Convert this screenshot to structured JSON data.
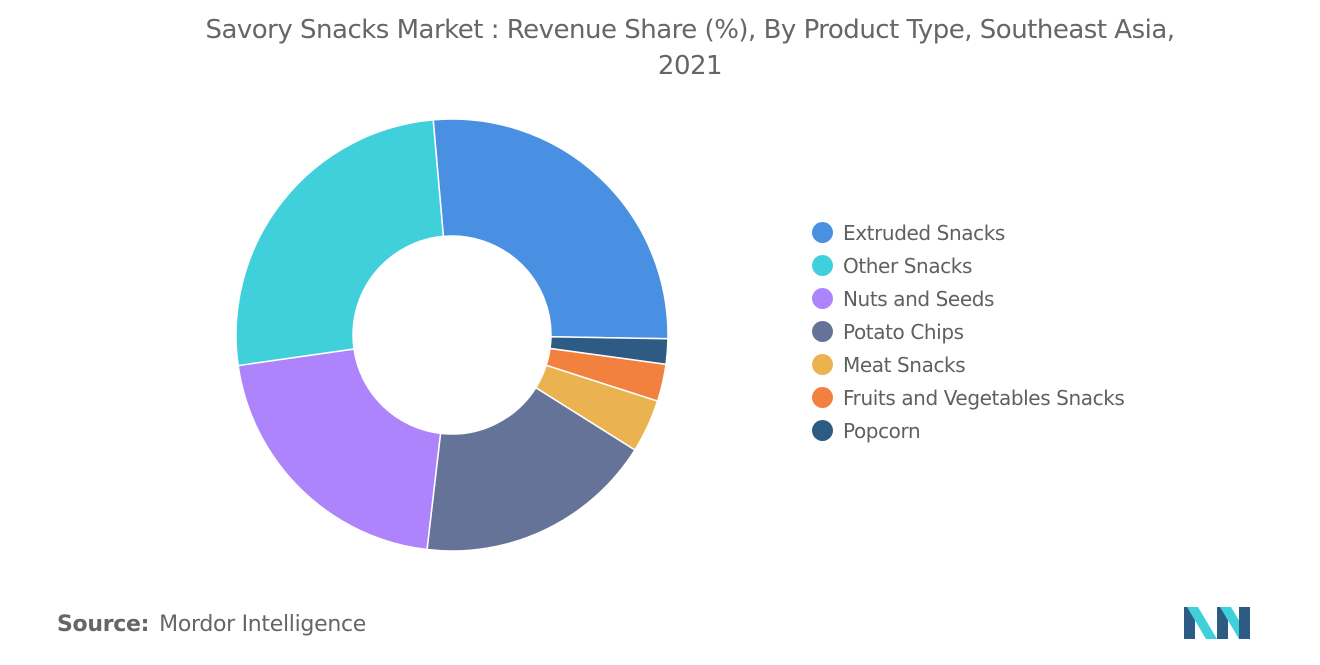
{
  "title_lines": [
    "Savory Snacks Market : Revenue Share (%), By Product Type, Southeast Asia,",
    "2021"
  ],
  "source": {
    "label": "Source:",
    "value": "Mordor Intelligence"
  },
  "chart_data": {
    "type": "pie",
    "title": "Savory Snacks Market : Revenue Share (%), By Product Type, Southeast Asia, 2021",
    "donut": true,
    "legend_position": "right",
    "categories": [
      "Extruded Snacks",
      "Other Snacks",
      "Nuts and Seeds",
      "Potato Chips",
      "Meat Snacks",
      "Fruits and Vegetables Snacks",
      "Popcorn"
    ],
    "values": [
      26.8,
      26.0,
      21.0,
      18.0,
      4.0,
      2.8,
      1.9
    ],
    "colors": [
      "#4a90e2",
      "#40d0db",
      "#ad84fb",
      "#657399",
      "#ebb34f",
      "#f2813f",
      "#2d5b83"
    ],
    "slice_order": [
      "Extruded Snacks",
      "Popcorn",
      "Fruits and Vegetables Snacks",
      "Meat Snacks",
      "Potato Chips",
      "Nuts and Seeds",
      "Other Snacks"
    ],
    "start_angle_deg": 355,
    "direction": "clockwise"
  },
  "logo": {
    "name": "mordor-intelligence-logo",
    "colors": [
      "#2d5b83",
      "#40d0db"
    ]
  }
}
